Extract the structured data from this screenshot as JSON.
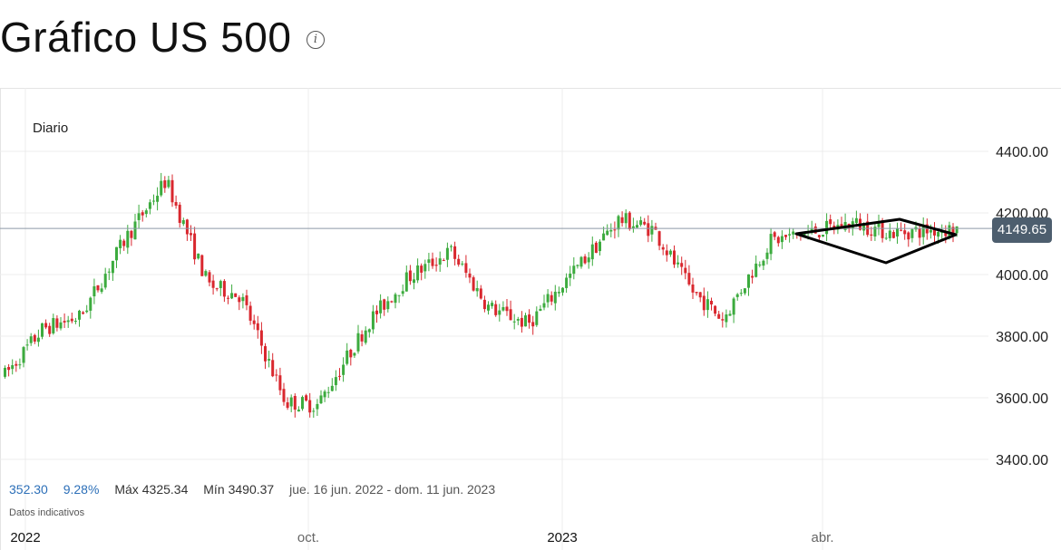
{
  "header": {
    "title": "Gráfico US 500",
    "info_icon": "info-icon"
  },
  "chart": {
    "period_label": "Diario",
    "stats": {
      "change": "352.30",
      "change_pct": "9.28%",
      "max_label": "Máx",
      "max_value": "4325.34",
      "min_label": "Mín",
      "min_value": "3490.37",
      "range": "jue. 16 jun. 2022 - dom. 11 jun. 2023"
    },
    "note": "Datos indicativos",
    "current_price": "4149.65"
  },
  "colors": {
    "up": "#3cab3e",
    "down": "#d9272e",
    "grid": "#ececec",
    "price_line": "#8c99a6",
    "price_tag": "#4d5e6e",
    "stat_blue": "#2c6fb8"
  },
  "chart_data": {
    "type": "candlestick",
    "title": "Gráfico US 500",
    "yticks": [
      "3400.00",
      "3600.00",
      "3800.00",
      "4000.00",
      "4200.00",
      "4400.00"
    ],
    "ylim": [
      3300,
      4560
    ],
    "xticks": [
      "2022",
      "oct.",
      "2023",
      "abr."
    ],
    "current_price": 4149.65,
    "max": 4325.34,
    "min": 3490.37,
    "grid": true,
    "series": [
      {
        "date": "2022-06",
        "close": 3674
      },
      {
        "date": "2022-07-01",
        "close": 3825
      },
      {
        "date": "2022-07-15",
        "close": 3863
      },
      {
        "date": "2022-08-01",
        "close": 4118
      },
      {
        "date": "2022-08-16",
        "close": 4305
      },
      {
        "date": "2022-09-01",
        "close": 3966
      },
      {
        "date": "2022-09-13",
        "close": 3932
      },
      {
        "date": "2022-09-30",
        "close": 3585
      },
      {
        "date": "2022-10-12",
        "close": 3577
      },
      {
        "date": "2022-11-01",
        "close": 3856
      },
      {
        "date": "2022-11-15",
        "close": 3991
      },
      {
        "date": "2022-12-01",
        "close": 4076
      },
      {
        "date": "2022-12-15",
        "close": 3895
      },
      {
        "date": "2022-12-30",
        "close": 3839
      },
      {
        "date": "2023-01-15",
        "close": 3999
      },
      {
        "date": "2023-02-02",
        "close": 4179
      },
      {
        "date": "2023-02-15",
        "close": 4147
      },
      {
        "date": "2023-03-01",
        "close": 3951
      },
      {
        "date": "2023-03-13",
        "close": 3855
      },
      {
        "date": "2023-03-31",
        "close": 4109
      },
      {
        "date": "2023-04-15",
        "close": 4137
      },
      {
        "date": "2023-05-01",
        "close": 4167
      },
      {
        "date": "2023-05-15",
        "close": 4136
      },
      {
        "date": "2023-06-09",
        "close": 4149
      }
    ]
  }
}
